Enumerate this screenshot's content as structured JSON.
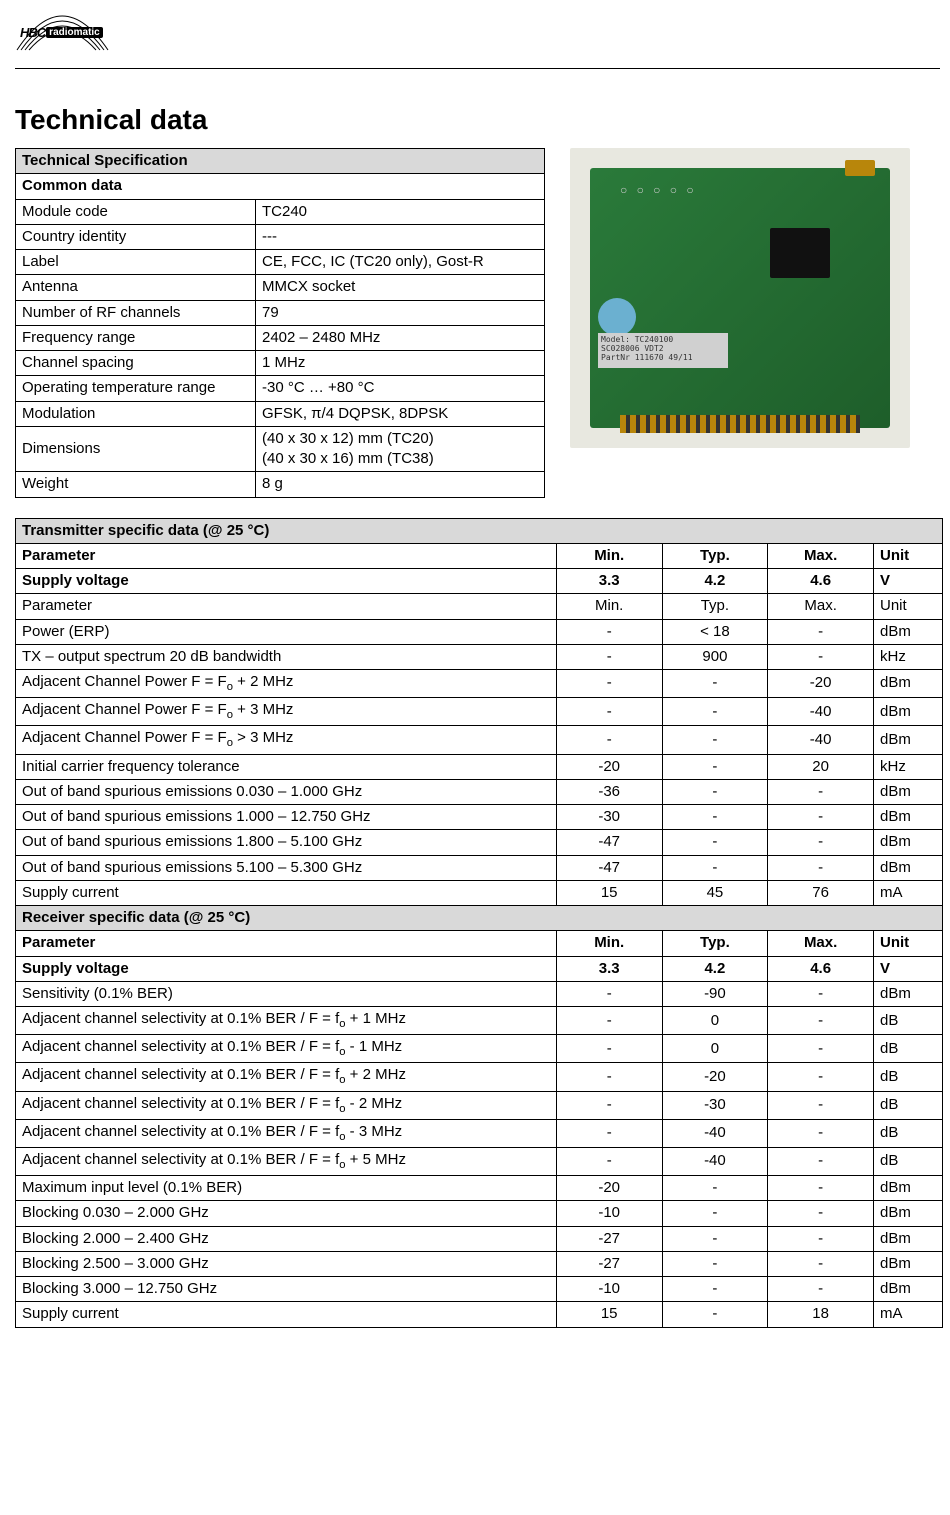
{
  "logo": {
    "hbc": "HBC",
    "radiomatic": "radiomatic"
  },
  "title": "Technical data",
  "spec_table": {
    "header": "Technical Specification",
    "subheader": "Common data",
    "rows": [
      {
        "label": "Module code",
        "value": "TC240"
      },
      {
        "label": "Country identity",
        "value": "---"
      },
      {
        "label": "Label",
        "value": "CE, FCC, IC (TC20 only), Gost-R"
      },
      {
        "label": "Antenna",
        "value": "MMCX socket"
      },
      {
        "label": "Number of RF channels",
        "value": "79"
      },
      {
        "label": "Frequency range",
        "value": "2402 – 2480 MHz"
      },
      {
        "label": "Channel spacing",
        "value": "1 MHz"
      },
      {
        "label": "Operating temperature range",
        "value": "-30 °C … +80 °C"
      },
      {
        "label": "Modulation",
        "value": "GFSK, π/4 DQPSK, 8DPSK"
      },
      {
        "label": "Dimensions",
        "value": "(40 x 30 x 12) mm (TC20)\n(40 x 30 x 16) mm (TC38)"
      },
      {
        "label": "Weight",
        "value": "8 g"
      }
    ]
  },
  "pcb_label": {
    "l1": "Model: TC240100",
    "l2": "SC028006    VDT2",
    "l3": "PartNr 111670   49/11"
  },
  "tx_header": "Transmitter specific data (@ 25 °C)",
  "rx_header": "Receiver specific data (@ 25 °C)",
  "col_headers": {
    "param": "Parameter",
    "min": "Min.",
    "typ": "Typ.",
    "max": "Max.",
    "unit": "Unit"
  },
  "supply_voltage": {
    "label": "Supply voltage",
    "min": "3.3",
    "typ": "4.2",
    "max": "4.6",
    "unit": "V"
  },
  "param_row": {
    "label": "Parameter",
    "min": "Min.",
    "typ": "Typ.",
    "max": "Max.",
    "unit": "Unit"
  },
  "tx_rows": [
    {
      "label": "Power (ERP)",
      "min": "-",
      "typ": "< 18",
      "max": "-",
      "unit": "dBm"
    },
    {
      "label": "TX – output spectrum 20 dB bandwidth",
      "min": "-",
      "typ": "900",
      "max": "-",
      "unit": "kHz"
    },
    {
      "label": "Adjacent Channel Power F = F<sub>o</sub> + 2 MHz",
      "min": "-",
      "typ": "-",
      "max": "-20",
      "unit": "dBm"
    },
    {
      "label": "Adjacent Channel Power F = F<sub>o</sub> + 3 MHz",
      "min": "-",
      "typ": "-",
      "max": "-40",
      "unit": "dBm"
    },
    {
      "label": "Adjacent Channel Power F = F<sub>o</sub> > 3 MHz",
      "min": "-",
      "typ": "-",
      "max": "-40",
      "unit": "dBm"
    },
    {
      "label": "Initial carrier frequency tolerance",
      "min": "-20",
      "typ": "-",
      "max": "20",
      "unit": "kHz"
    },
    {
      "label": "Out of band spurious emissions  0.030 – 1.000 GHz",
      "min": "-36",
      "typ": "-",
      "max": "-",
      "unit": "dBm"
    },
    {
      "label": "Out of band spurious emissions  1.000 – 12.750 GHz",
      "min": "-30",
      "typ": "-",
      "max": "-",
      "unit": "dBm"
    },
    {
      "label": "Out of band spurious emissions  1.800 – 5.100 GHz",
      "min": "-47",
      "typ": "-",
      "max": "-",
      "unit": "dBm"
    },
    {
      "label": "Out of band spurious emissions  5.100 – 5.300 GHz",
      "min": "-47",
      "typ": "-",
      "max": "-",
      "unit": "dBm"
    },
    {
      "label": "Supply current",
      "min": "15",
      "typ": "45",
      "max": "76",
      "unit": "mA"
    }
  ],
  "rx_rows": [
    {
      "label": "Sensitivity (0.1% BER)",
      "min": "-",
      "typ": "-90",
      "max": "-",
      "unit": "dBm"
    },
    {
      "label": "Adjacent channel selectivity at 0.1% BER / F = f<sub>o</sub> + 1 MHz",
      "min": "-",
      "typ": "0",
      "max": "-",
      "unit": "dB"
    },
    {
      "label": "Adjacent channel selectivity at 0.1% BER / F = f<sub>o</sub> - 1 MHz",
      "min": "-",
      "typ": "0",
      "max": "-",
      "unit": "dB"
    },
    {
      "label": "Adjacent channel selectivity at 0.1% BER / F = f<sub>o</sub> + 2 MHz",
      "min": "-",
      "typ": "-20",
      "max": "-",
      "unit": "dB"
    },
    {
      "label": "Adjacent channel selectivity at 0.1% BER / F = f<sub>o</sub> - 2 MHz",
      "min": "-",
      "typ": "-30",
      "max": "-",
      "unit": "dB"
    },
    {
      "label": "Adjacent channel selectivity at 0.1% BER / F = f<sub>o</sub> - 3 MHz",
      "min": "-",
      "typ": "-40",
      "max": "-",
      "unit": "dB"
    },
    {
      "label": "Adjacent channel selectivity at 0.1% BER / F = f<sub>o</sub> + 5 MHz",
      "min": "-",
      "typ": "-40",
      "max": "-",
      "unit": "dB"
    },
    {
      "label": "Maximum input level (0.1% BER)",
      "min": "-20",
      "typ": "-",
      "max": "-",
      "unit": "dBm"
    },
    {
      "label": "Blocking 0.030 – 2.000 GHz",
      "min": "-10",
      "typ": "-",
      "max": "-",
      "unit": "dBm"
    },
    {
      "label": "Blocking 2.000 – 2.400 GHz",
      "min": "-27",
      "typ": "-",
      "max": "-",
      "unit": "dBm"
    },
    {
      "label": "Blocking 2.500 – 3.000 GHz",
      "min": "-27",
      "typ": "-",
      "max": "-",
      "unit": "dBm"
    },
    {
      "label": "Blocking 3.000 – 12.750 GHz",
      "min": "-10",
      "typ": "-",
      "max": "-",
      "unit": "dBm"
    },
    {
      "label": "Supply current",
      "min": "15",
      "typ": "-",
      "max": "18",
      "unit": "mA"
    }
  ]
}
